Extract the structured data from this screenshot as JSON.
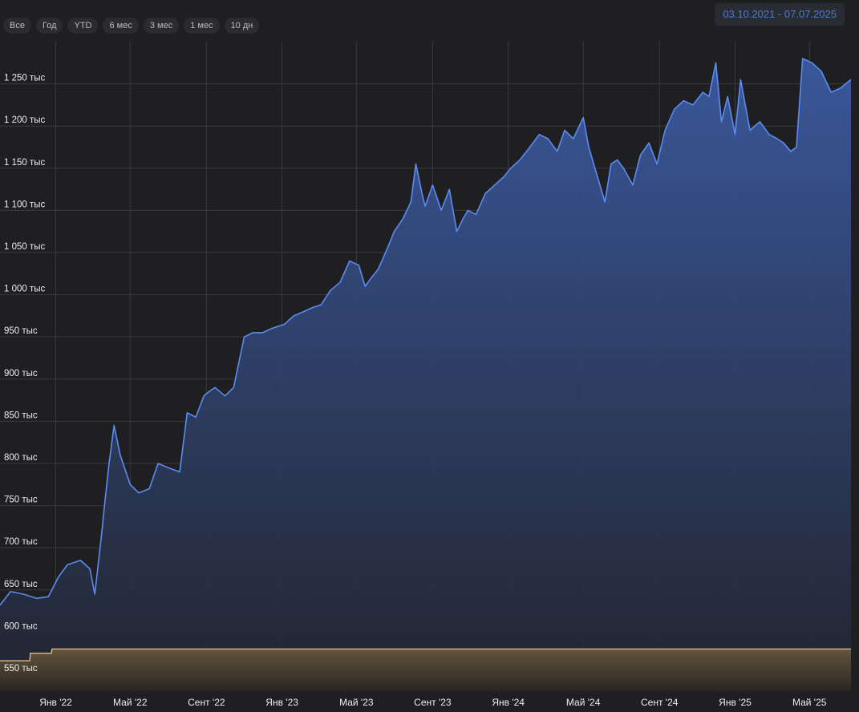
{
  "toolbar": {
    "buttons": [
      "Все",
      "Год",
      "YTD",
      "6 мес",
      "3 мес",
      "1 мес",
      "10 дн"
    ]
  },
  "date_range": "03.10.2021 - 07.07.2025",
  "colors": {
    "background": "#1f1f22",
    "line": "#5b8cf2",
    "area_top": "#3b5aa0",
    "area_bottom": "#22252f",
    "secondary_line": "#d9b98a",
    "grid": "#3a3a40",
    "date_range_text": "#4a7bd6"
  },
  "chart_data": {
    "type": "area",
    "grid": true,
    "y_tick_labels": [
      "550 тыс",
      "600 тыс",
      "650 тыс",
      "700 тыс",
      "750 тыс",
      "800 тыс",
      "850 тыс",
      "900 тыс",
      "950 тыс",
      "1 000 тыс",
      "1 050 тыс",
      "1 100 тыс",
      "1 150 тыс",
      "1 200 тыс",
      "1 250 тыс"
    ],
    "y_ticks": [
      550000,
      600000,
      650000,
      700000,
      750000,
      800000,
      850000,
      900000,
      950000,
      1000000,
      1050000,
      1100000,
      1150000,
      1200000,
      1250000
    ],
    "ylim": [
      530000,
      1300000
    ],
    "xlim": [
      "2021-10-03",
      "2025-07-07"
    ],
    "x_tick_labels": [
      "Янв '22",
      "Май '22",
      "Сент '22",
      "Янв '23",
      "Май '23",
      "Сент '23",
      "Янв '24",
      "Май '24",
      "Сент '24",
      "Янв '25",
      "Май '25"
    ],
    "x_ticks": [
      "2022-01-01",
      "2022-05-01",
      "2022-09-01",
      "2023-01-01",
      "2023-05-01",
      "2023-09-01",
      "2024-01-01",
      "2024-05-01",
      "2024-09-01",
      "2025-01-01",
      "2025-05-01"
    ],
    "series": [
      {
        "role": "portfolio_value",
        "x": [
          "2021-10-03",
          "2021-10-20",
          "2021-11-10",
          "2021-12-01",
          "2021-12-20",
          "2022-01-05",
          "2022-01-20",
          "2022-02-10",
          "2022-02-25",
          "2022-03-05",
          "2022-03-15",
          "2022-03-22",
          "2022-03-28",
          "2022-04-05",
          "2022-04-15",
          "2022-05-01",
          "2022-05-15",
          "2022-06-01",
          "2022-06-15",
          "2022-07-01",
          "2022-07-20",
          "2022-08-01",
          "2022-08-15",
          "2022-08-28",
          "2022-09-05",
          "2022-09-15",
          "2022-10-01",
          "2022-10-15",
          "2022-11-01",
          "2022-11-15",
          "2022-12-01",
          "2022-12-15",
          "2023-01-05",
          "2023-01-20",
          "2023-02-05",
          "2023-02-20",
          "2023-03-05",
          "2023-03-20",
          "2023-04-05",
          "2023-04-20",
          "2023-05-05",
          "2023-05-15",
          "2023-05-25",
          "2023-06-05",
          "2023-06-20",
          "2023-07-01",
          "2023-07-15",
          "2023-07-28",
          "2023-08-05",
          "2023-08-15",
          "2023-08-20",
          "2023-09-01",
          "2023-09-15",
          "2023-09-28",
          "2023-10-10",
          "2023-10-20",
          "2023-10-28",
          "2023-11-10",
          "2023-11-25",
          "2023-12-10",
          "2023-12-25",
          "2024-01-05",
          "2024-01-20",
          "2024-02-05",
          "2024-02-20",
          "2024-03-05",
          "2024-03-20",
          "2024-04-01",
          "2024-04-15",
          "2024-05-01",
          "2024-05-10",
          "2024-05-20",
          "2024-06-05",
          "2024-06-15",
          "2024-06-25",
          "2024-07-05",
          "2024-07-20",
          "2024-08-01",
          "2024-08-15",
          "2024-08-28",
          "2024-09-10",
          "2024-09-25",
          "2024-10-10",
          "2024-10-25",
          "2024-11-10",
          "2024-11-20",
          "2024-12-01",
          "2024-12-10",
          "2024-12-20",
          "2025-01-01",
          "2025-01-10",
          "2025-01-25",
          "2025-02-10",
          "2025-02-25",
          "2025-03-10",
          "2025-03-20",
          "2025-04-01",
          "2025-04-10",
          "2025-04-20",
          "2025-05-05",
          "2025-05-20",
          "2025-06-05",
          "2025-06-20",
          "2025-07-07"
        ],
        "y": [
          632000,
          648000,
          645000,
          640000,
          642000,
          665000,
          680000,
          685000,
          675000,
          645000,
          710000,
          760000,
          800000,
          845000,
          810000,
          775000,
          765000,
          770000,
          800000,
          795000,
          790000,
          860000,
          855000,
          880000,
          885000,
          890000,
          880000,
          890000,
          950000,
          955000,
          955000,
          960000,
          965000,
          975000,
          980000,
          985000,
          988000,
          1005000,
          1015000,
          1040000,
          1035000,
          1010000,
          1020000,
          1030000,
          1055000,
          1075000,
          1090000,
          1110000,
          1155000,
          1120000,
          1105000,
          1130000,
          1100000,
          1125000,
          1075000,
          1090000,
          1100000,
          1095000,
          1120000,
          1130000,
          1140000,
          1150000,
          1160000,
          1175000,
          1190000,
          1185000,
          1170000,
          1195000,
          1185000,
          1210000,
          1175000,
          1150000,
          1110000,
          1155000,
          1160000,
          1150000,
          1130000,
          1165000,
          1180000,
          1155000,
          1195000,
          1220000,
          1230000,
          1225000,
          1240000,
          1235000,
          1275000,
          1205000,
          1235000,
          1190000,
          1255000,
          1195000,
          1205000,
          1190000,
          1185000,
          1180000,
          1170000,
          1175000,
          1280000,
          1275000,
          1265000,
          1240000,
          1245000,
          1255000
        ]
      },
      {
        "role": "invested",
        "x": [
          "2021-10-03",
          "2021-11-20",
          "2021-11-21",
          "2021-12-25",
          "2021-12-26",
          "2025-07-07"
        ],
        "y": [
          566000,
          566000,
          575000,
          575000,
          580000,
          580000
        ]
      }
    ]
  }
}
